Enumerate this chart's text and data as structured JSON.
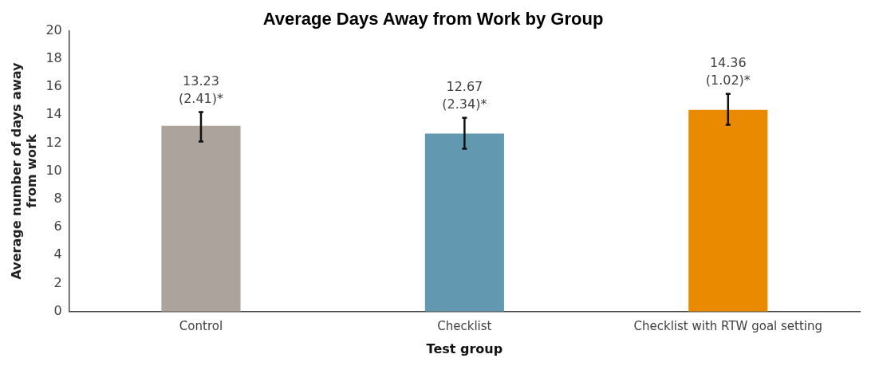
{
  "chart_data": {
    "type": "bar",
    "title": "Average Days Away from Work by Group",
    "xlabel": "Test group",
    "ylabel": "Average number of days away\nfrom work",
    "categories": [
      "Control",
      "Checklist",
      "Checklist with RTW goal setting"
    ],
    "values": [
      13.23,
      12.67,
      14.36
    ],
    "colors": [
      "#aba39c",
      "#6299b0",
      "#ea8a00"
    ],
    "errors": [
      [
        12.1,
        14.2
      ],
      [
        11.6,
        13.8
      ],
      [
        13.3,
        15.5
      ]
    ],
    "value_labels": [
      "13.23\n(2.41)*",
      "12.67\n(2.34)*",
      "14.36\n(1.02)*"
    ],
    "ylim": [
      0,
      20
    ],
    "yticks": [
      0,
      2,
      4,
      6,
      8,
      10,
      12,
      14,
      16,
      18,
      20
    ],
    "grid": false,
    "legend": false
  }
}
